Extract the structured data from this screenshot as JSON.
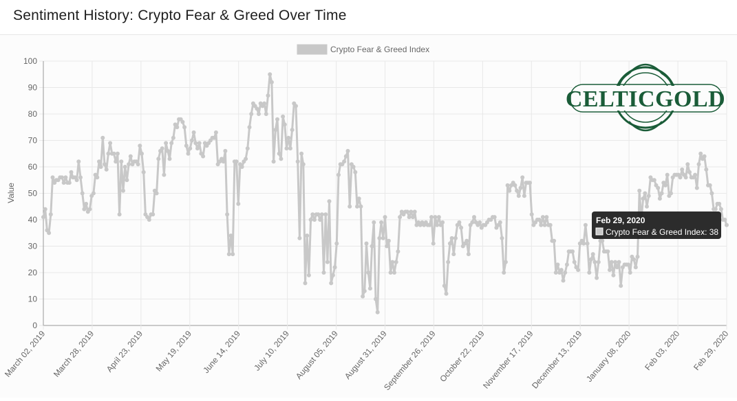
{
  "page": {
    "title": "Sentiment History: Crypto Fear & Greed Over Time"
  },
  "logo": {
    "text": "CELTICGOLD",
    "color": "#1a5c38"
  },
  "tooltip": {
    "date": "Feb 29, 2020",
    "series": "Crypto Fear & Greed Index",
    "value": 38
  },
  "colors": {
    "series": "#c8c8c8",
    "grid": "#e8e8e8",
    "axis": "#999999",
    "tick_text": "#666666"
  },
  "chart_data": {
    "type": "line",
    "title": "",
    "xlabel": "",
    "ylabel": "Value",
    "ylim": [
      0,
      100
    ],
    "yticks": [
      0,
      10,
      20,
      30,
      40,
      50,
      60,
      70,
      80,
      90,
      100
    ],
    "start_date": "2019-03-02",
    "end_date": "2020-02-29",
    "x_tick_labels": [
      "March 02, 2019",
      "March 28, 2019",
      "April 23, 2019",
      "May 19, 2019",
      "June 14, 2019",
      "July 10, 2019",
      "August 05, 2019",
      "August 31, 2019",
      "September 26, 2019",
      "October 22, 2019",
      "November 17, 2019",
      "December 13, 2019",
      "January 08, 2020",
      "Feb 03, 2020",
      "Feb 29, 2020"
    ],
    "legend": "top-center",
    "series": [
      {
        "name": "Crypto Fear & Greed Index",
        "values": [
          41,
          44,
          36,
          35,
          42,
          56,
          54,
          55,
          55,
          56,
          56,
          54,
          56,
          54,
          54,
          58,
          56,
          56,
          55,
          62,
          56,
          50,
          44,
          46,
          43,
          44,
          49,
          50,
          57,
          56,
          62,
          60,
          71,
          61,
          59,
          65,
          69,
          65,
          65,
          62,
          65,
          42,
          62,
          51,
          60,
          55,
          61,
          64,
          61,
          62,
          62,
          61,
          68,
          65,
          58,
          42,
          41,
          40,
          42,
          42,
          51,
          50,
          63,
          66,
          67,
          57,
          69,
          66,
          63,
          69,
          71,
          76,
          75,
          78,
          78,
          77,
          75,
          68,
          65,
          67,
          70,
          73,
          69,
          67,
          69,
          65,
          64,
          69,
          68,
          69,
          70,
          71,
          71,
          73,
          61,
          62,
          63,
          62,
          66,
          42,
          27,
          34,
          27,
          62,
          62,
          46,
          61,
          60,
          62,
          63,
          67,
          75,
          80,
          84,
          83,
          82,
          80,
          84,
          83,
          84,
          80,
          87,
          95,
          92,
          62,
          74,
          78,
          65,
          63,
          79,
          76,
          67,
          71,
          67,
          74,
          84,
          83,
          62,
          33,
          65,
          61,
          16,
          34,
          19,
          40,
          42,
          40,
          42,
          42,
          40,
          42,
          20,
          42,
          24,
          47,
          16,
          19,
          22,
          31,
          57,
          61,
          61,
          62,
          64,
          66,
          45,
          61,
          60,
          58,
          45,
          48,
          45,
          11,
          13,
          31,
          20,
          14,
          30,
          39,
          10,
          5,
          33,
          39,
          33,
          41,
          30,
          32,
          20,
          24,
          20,
          24,
          28,
          41,
          43,
          42,
          43,
          43,
          41,
          43,
          41,
          43,
          38,
          39,
          38,
          39,
          38,
          39,
          38,
          38,
          41,
          31,
          41,
          38,
          41,
          38,
          39,
          15,
          12,
          24,
          31,
          33,
          27,
          33,
          38,
          39,
          37,
          30,
          31,
          32,
          27,
          38,
          39,
          41,
          39,
          38,
          39,
          37,
          38,
          38,
          39,
          40,
          40,
          41,
          41,
          37,
          38,
          39,
          33,
          20,
          24,
          53,
          51,
          53,
          54,
          53,
          51,
          49,
          52,
          56,
          49,
          54,
          54,
          54,
          42,
          38,
          39,
          40,
          40,
          38,
          41,
          38,
          41,
          38,
          38,
          32,
          32,
          20,
          23,
          20,
          21,
          17,
          20,
          23,
          28,
          28,
          28,
          24,
          22,
          21,
          31,
          32,
          31,
          38,
          31,
          20,
          25,
          27,
          24,
          18,
          24,
          32,
          32,
          28,
          28,
          28,
          21,
          24,
          19,
          24,
          22,
          24,
          15,
          22,
          23,
          23,
          23,
          20,
          26,
          25,
          22,
          26,
          51,
          40,
          48,
          50,
          45,
          49,
          56,
          55,
          55,
          53,
          52,
          48,
          50,
          54,
          53,
          57,
          49,
          50,
          56,
          57,
          57,
          57,
          56,
          59,
          57,
          56,
          61,
          58,
          56,
          56,
          57,
          52,
          61,
          65,
          63,
          64,
          59,
          53,
          53,
          50,
          44,
          44,
          46,
          46,
          44,
          40,
          40,
          38
        ]
      }
    ]
  }
}
